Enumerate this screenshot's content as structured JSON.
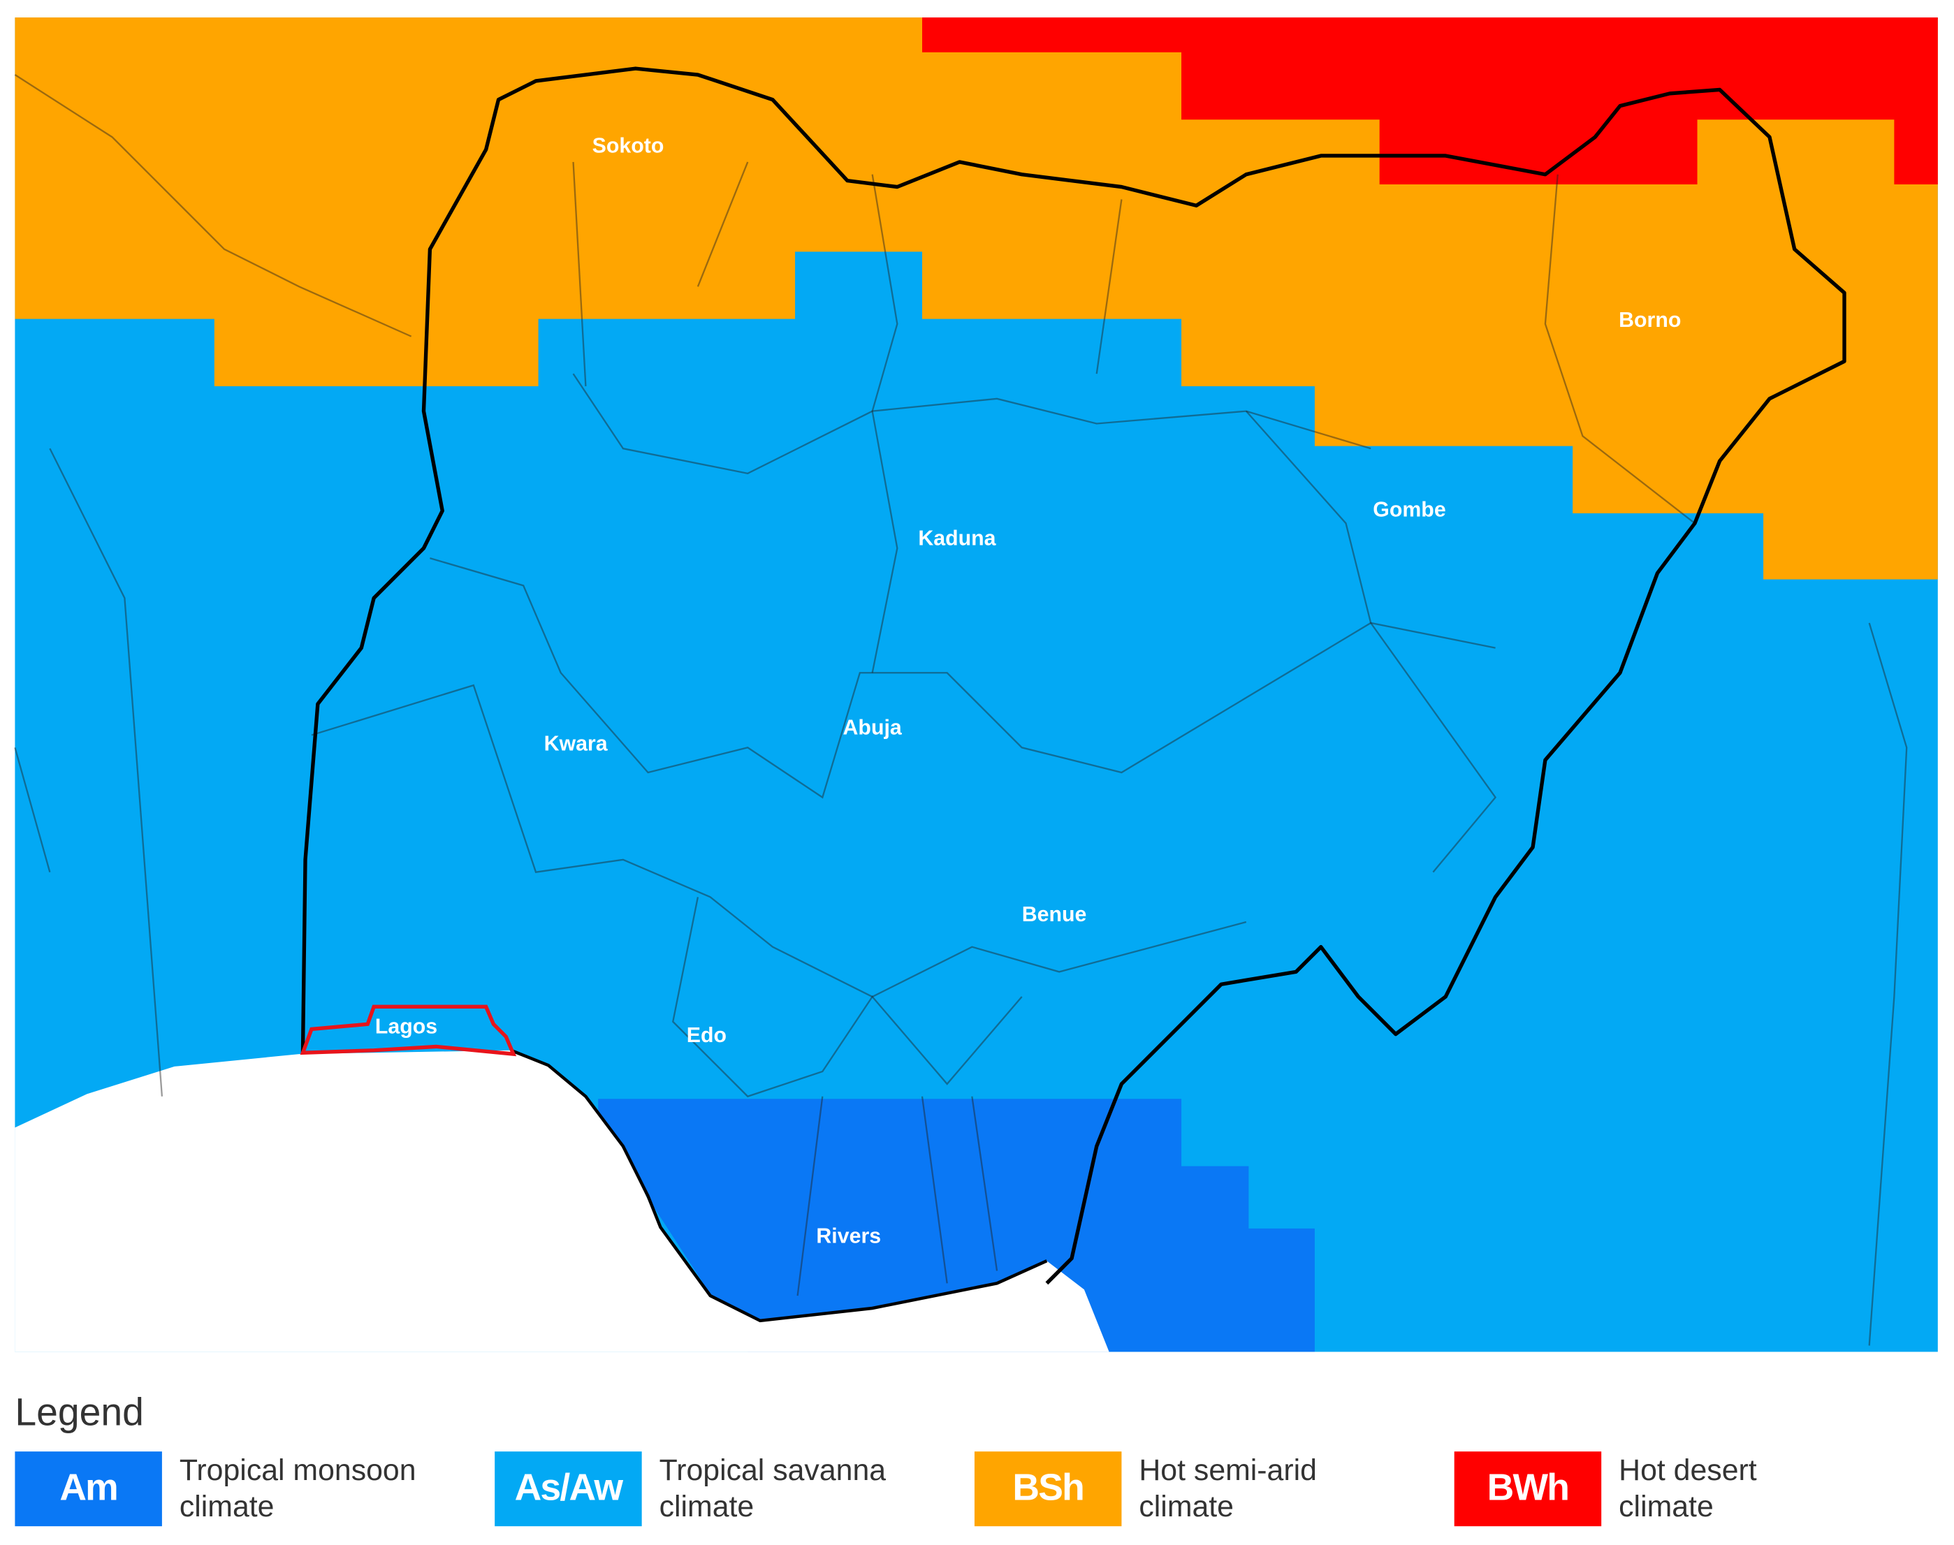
{
  "map": {
    "labels": [
      "Sokoto",
      "Borno",
      "Gombe",
      "Kaduna",
      "Kwara",
      "Abuja",
      "Benue",
      "Lagos",
      "Edo",
      "Rivers"
    ]
  },
  "legend": {
    "title": "Legend",
    "items": [
      {
        "code": "Am",
        "lines": [
          "Tropical monsoon",
          "climate"
        ],
        "color": "#0a78f5"
      },
      {
        "code": "As/Aw",
        "lines": [
          "Tropical savanna",
          "climate"
        ],
        "color": "#03a9f4"
      },
      {
        "code": "BSh",
        "lines": [
          "Hot semi-arid",
          "climate"
        ],
        "color": "#ffa500"
      },
      {
        "code": "BWh",
        "lines": [
          "Hot desert",
          "climate"
        ],
        "color": "#ff0000"
      }
    ]
  }
}
